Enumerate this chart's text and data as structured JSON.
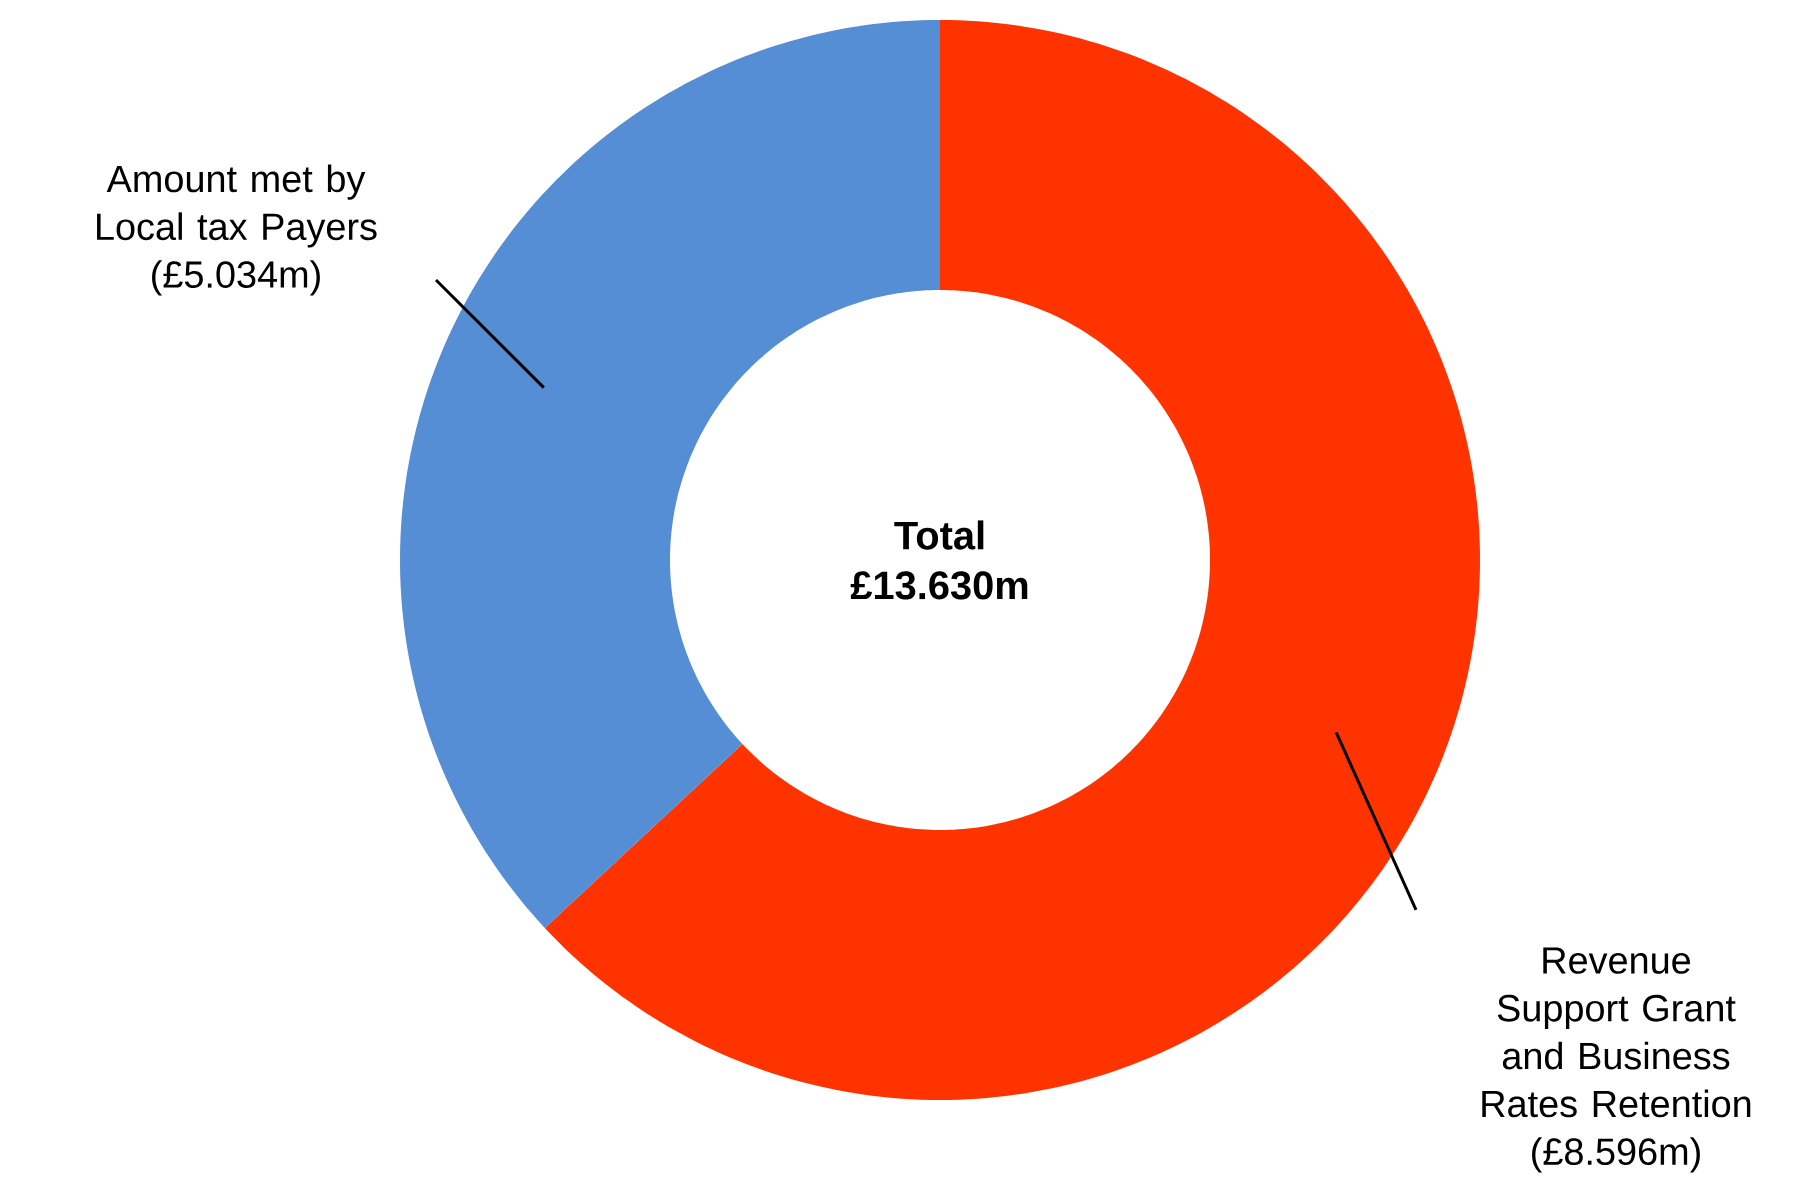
{
  "chart_data": {
    "type": "donut",
    "categories": [
      "Revenue Support Grant and Business Rates Retention",
      "Amount met by Local tax Payers"
    ],
    "values": [
      8.596,
      5.034
    ],
    "value_labels": [
      "(£8.596m)",
      "(£5.034m)"
    ],
    "colors": [
      "#ff3300",
      "#558ed5"
    ],
    "annotations": [
      "Total",
      "£13.630m"
    ]
  }
}
